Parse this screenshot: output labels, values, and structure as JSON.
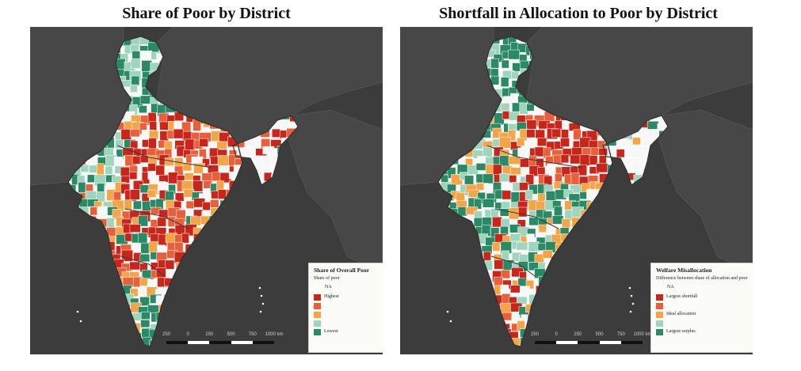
{
  "maps": [
    {
      "title": "Share of Poor by District",
      "legend": {
        "title": "Share of Overall Poor",
        "subtitle": "Share of poor",
        "na": "NA",
        "items": [
          {
            "label": "Highest",
            "color": "#c8261b"
          },
          {
            "label": "",
            "color": "#e8603a"
          },
          {
            "label": "",
            "color": "#f4a547"
          },
          {
            "label": "",
            "color": "#9fd4bd"
          },
          {
            "label": "Lowest",
            "color": "#2a8a66"
          }
        ]
      },
      "scale": {
        "ticks": [
          "250",
          "0",
          "250",
          "500",
          "750",
          "1000 km"
        ]
      }
    },
    {
      "title": "Shortfall in Allocation to Poor by District",
      "legend": {
        "title": "Welfare Misallocation",
        "subtitle": "Difference between share of allocation and poor",
        "na": "NA",
        "items": [
          {
            "label": "Largest shortfall",
            "color": "#c8261b"
          },
          {
            "label": "",
            "color": "#e8603a"
          },
          {
            "label": "Ideal allocation",
            "color": "#f4a547"
          },
          {
            "label": "",
            "color": "#9fd4bd"
          },
          {
            "label": "Largest surplus",
            "color": "#2a8a66"
          }
        ]
      },
      "scale": {
        "ticks": [
          "250",
          "0",
          "250",
          "500",
          "750",
          "1000 km"
        ]
      }
    }
  ],
  "colors": {
    "background": "#3c3c3c",
    "land_neighbors": "#474747",
    "na": "#f7f7f7",
    "border": "#333333"
  }
}
